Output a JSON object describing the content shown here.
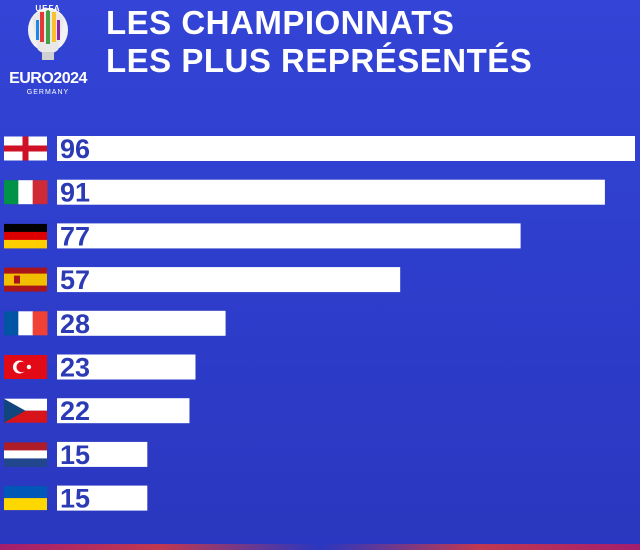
{
  "logo": {
    "uefa": "UEFA",
    "euro": "EURO2024",
    "host": "GERMANY"
  },
  "title": {
    "line1": "LES CHAMPIONNATS",
    "line2": "LES PLUS REPRÉSENTÉS"
  },
  "colors": {
    "background": "#2f3fd0",
    "bar": "#ffffff",
    "label": "#2b3ab5"
  },
  "chart_data": {
    "type": "bar",
    "orientation": "horizontal",
    "title": "LES CHAMPIONNATS LES PLUS REPRÉSENTÉS",
    "categories": [
      "england-flag",
      "italy-flag",
      "germany-flag",
      "spain-flag",
      "france-flag",
      "turkey-flag",
      "czechia-flag",
      "netherlands-flag",
      "ukraine-flag"
    ],
    "values": [
      96,
      91,
      77,
      57,
      28,
      23,
      22,
      15,
      15
    ],
    "xlim": [
      0,
      96
    ],
    "xlabel": "",
    "ylabel": "",
    "grid": false,
    "legend": "none"
  }
}
